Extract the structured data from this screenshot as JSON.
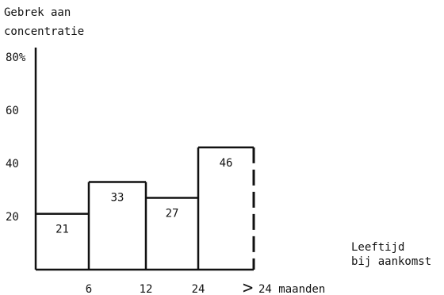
{
  "chart_data": {
    "type": "bar",
    "ylabel_lines": [
      "Gebrek aan",
      "concentratie"
    ],
    "xlabel_lines": [
      "Leeftijd",
      "bij aankomst"
    ],
    "y_ticks": [
      {
        "value": 20,
        "label": "20"
      },
      {
        "value": 40,
        "label": "40"
      },
      {
        "value": 60,
        "label": "60"
      },
      {
        "value": 80,
        "label": "80%"
      }
    ],
    "x_ticks": [
      "6",
      "12",
      "24"
    ],
    "last_x_label_symbol": ">",
    "last_x_label_text": "24 maanden",
    "bins": [
      {
        "label": "21",
        "value": 21
      },
      {
        "label": "33",
        "value": 33
      },
      {
        "label": "27",
        "value": 27
      },
      {
        "label": "46",
        "value": 46,
        "dashed_right": true
      }
    ],
    "ylim": [
      0,
      80
    ],
    "grid": false,
    "legend": "none",
    "colors": {
      "ink": "#111111",
      "background": "#ffffff"
    }
  }
}
